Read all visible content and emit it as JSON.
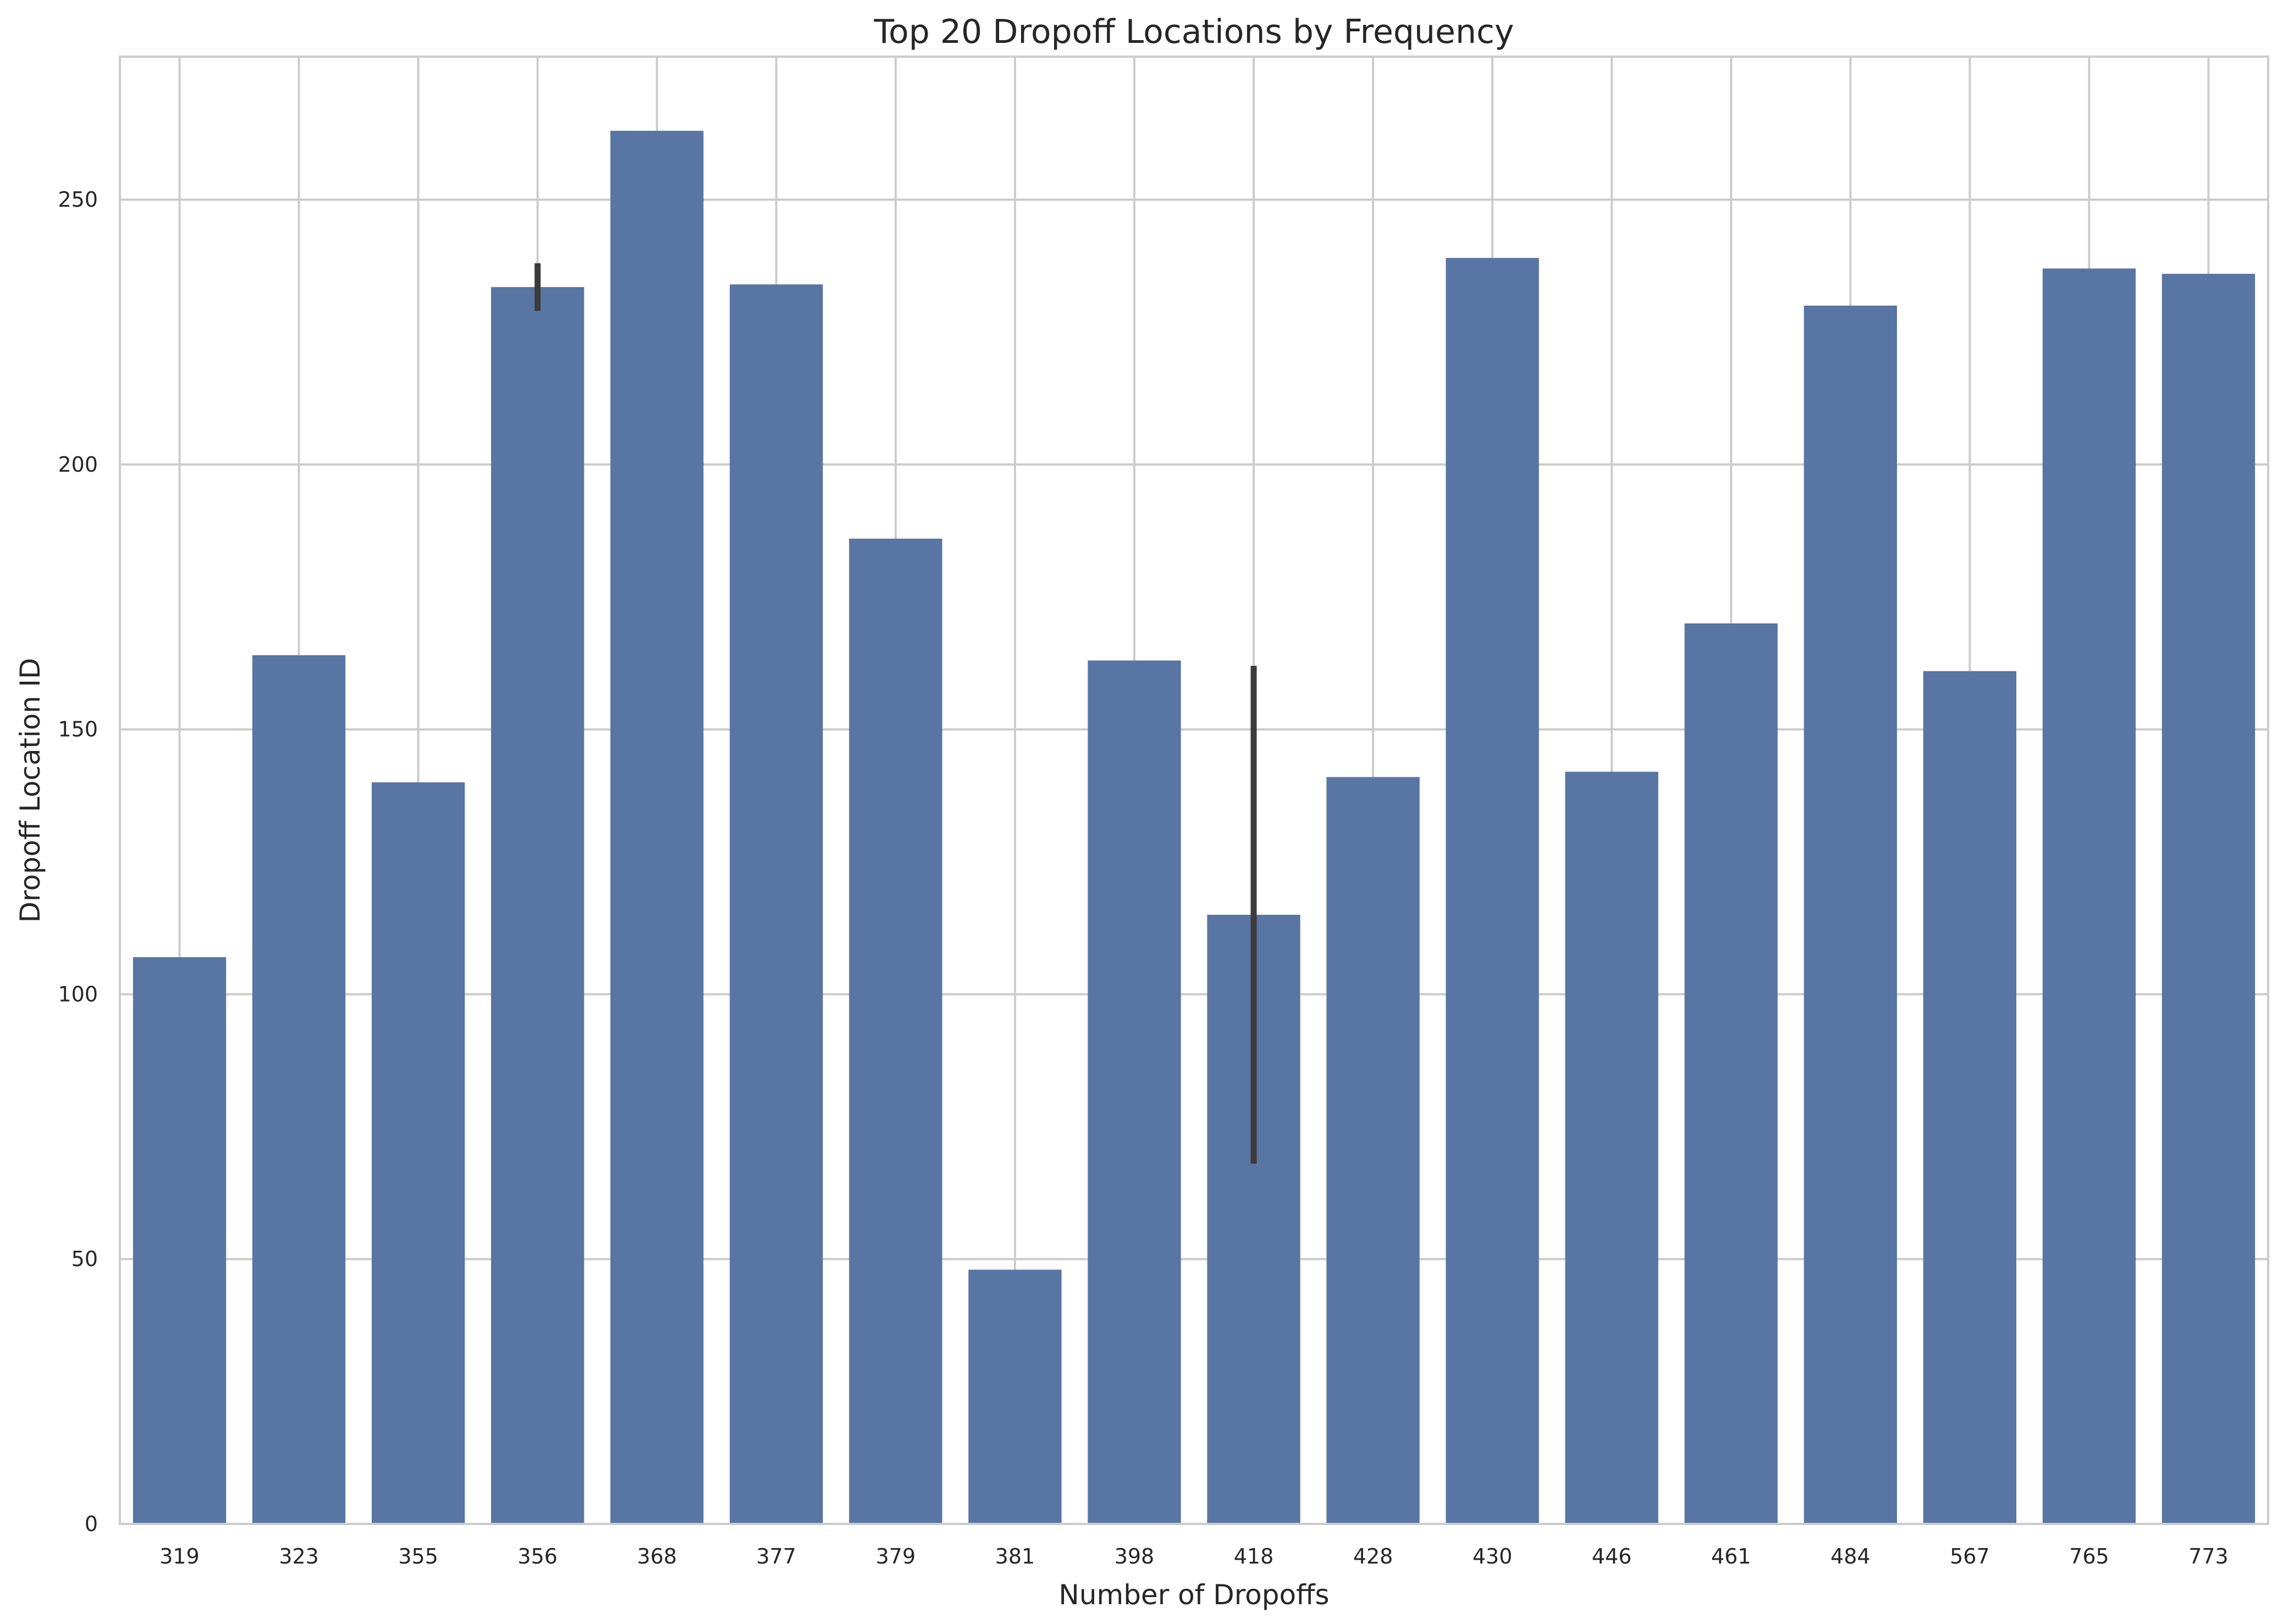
{
  "chart_data": {
    "type": "bar",
    "title": "Top 20 Dropoff Locations by Frequency",
    "xlabel": "Number of Dropoffs",
    "ylabel": "Dropoff Location ID",
    "categories": [
      "319",
      "323",
      "355",
      "356",
      "368",
      "377",
      "379",
      "381",
      "398",
      "418",
      "428",
      "430",
      "446",
      "461",
      "484",
      "567",
      "765",
      "773"
    ],
    "values": [
      107,
      164,
      140,
      233.5,
      263,
      234,
      186,
      48,
      163,
      115,
      141,
      239,
      142,
      170,
      230,
      161,
      237,
      236
    ],
    "error_bars": [
      null,
      null,
      null,
      [
        229,
        238
      ],
      null,
      null,
      null,
      null,
      null,
      [
        68,
        162
      ],
      null,
      null,
      null,
      null,
      null,
      null,
      null,
      null
    ],
    "yticks": [
      0,
      50,
      100,
      150,
      200,
      250
    ],
    "ylim": [
      0,
      277
    ],
    "grid": true,
    "colors": {
      "bar": "#5975a4",
      "error": "#3b3b3b",
      "grid": "#cccccc",
      "frame": "#cccccc"
    }
  }
}
